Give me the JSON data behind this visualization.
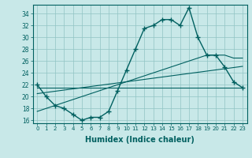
{
  "xlabel": "Humidex (Indice chaleur)",
  "x_values": [
    0,
    1,
    2,
    3,
    4,
    5,
    6,
    7,
    8,
    9,
    10,
    11,
    12,
    13,
    14,
    15,
    16,
    17,
    18,
    19,
    20,
    21,
    22,
    23
  ],
  "main_line": [
    22,
    20,
    18.5,
    18,
    17,
    16,
    16.5,
    16.5,
    17.5,
    21,
    24.5,
    28,
    31.5,
    32,
    33,
    33,
    32,
    35,
    30,
    27,
    27,
    25,
    22.5,
    21.5
  ],
  "trend1": [
    17.5,
    18.0,
    18.5,
    19.0,
    19.5,
    20.0,
    20.5,
    21.0,
    21.5,
    22.0,
    22.5,
    23.0,
    23.5,
    24.0,
    24.5,
    25.0,
    25.5,
    26.0,
    26.5,
    27.0,
    27.0,
    27.0,
    26.5,
    26.5
  ],
  "trend2": [
    20.5,
    20.7,
    20.9,
    21.1,
    21.3,
    21.5,
    21.7,
    21.9,
    22.1,
    22.3,
    22.5,
    22.7,
    22.9,
    23.1,
    23.3,
    23.5,
    23.7,
    23.9,
    24.1,
    24.3,
    24.5,
    24.7,
    24.9,
    25.1
  ],
  "trend3": [
    21.5,
    21.5,
    21.5,
    21.5,
    21.5,
    21.5,
    21.5,
    21.5,
    21.5,
    21.5,
    21.5,
    21.5,
    21.5,
    21.5,
    21.5,
    21.5,
    21.5,
    21.5,
    21.5,
    21.5,
    21.5,
    21.5,
    21.5,
    21.5
  ],
  "line_color": "#006060",
  "bg_color": "#c8e8e8",
  "grid_color": "#90c4c4",
  "ylim": [
    15.5,
    35.5
  ],
  "yticks": [
    16,
    18,
    20,
    22,
    24,
    26,
    28,
    30,
    32,
    34
  ],
  "xlim": [
    -0.5,
    23.5
  ]
}
